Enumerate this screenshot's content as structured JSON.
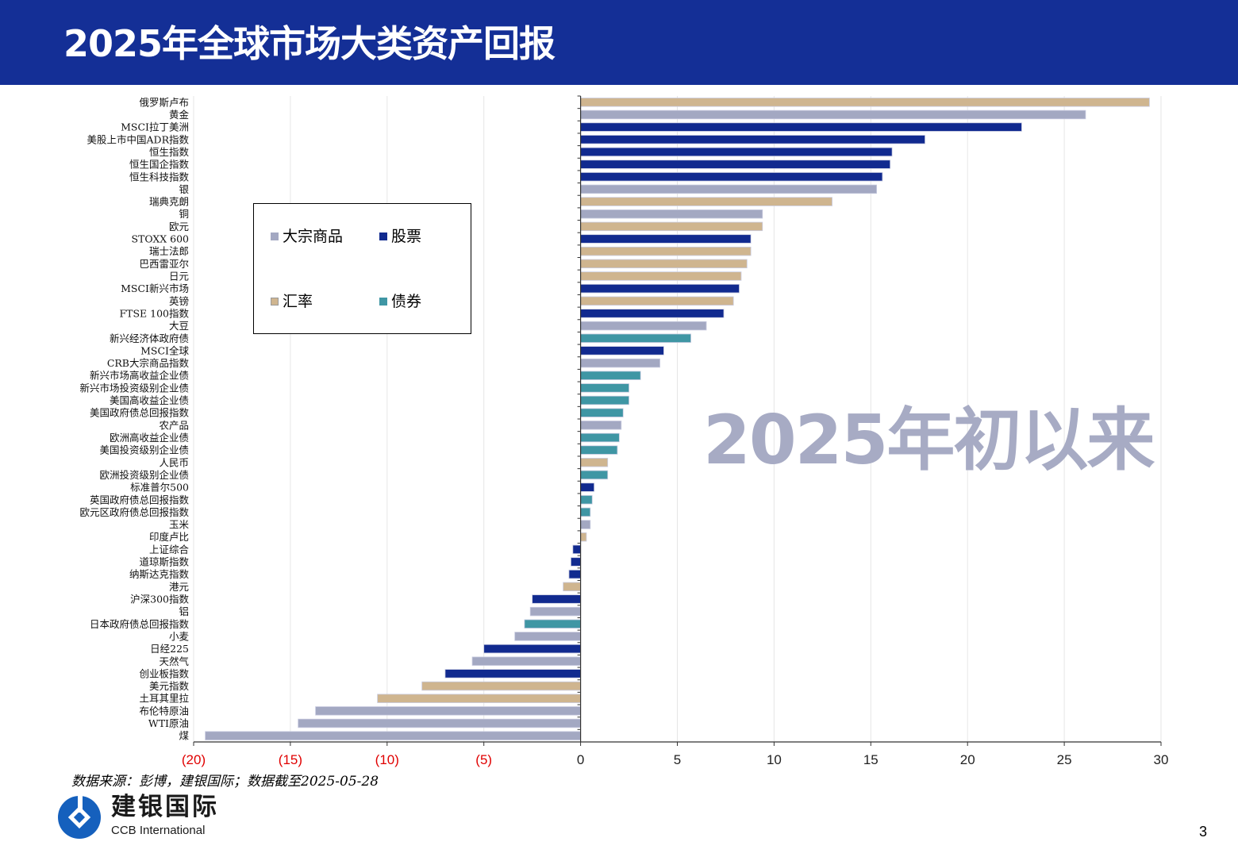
{
  "header": {
    "title": "2025年全球市场大类资产回报"
  },
  "watermark": "2025年初以来",
  "source": "数据来源：彭博，建银国际；数据截至2025-05-28",
  "logo": {
    "cn": "建银国际",
    "en": "CCB International"
  },
  "page_number": "3",
  "legend": {
    "commodity": "大宗商品",
    "equity": "股票",
    "fx": "汇率",
    "bond": "债券"
  },
  "colors": {
    "commodity": "#a3a8c2",
    "equity": "#112a8f",
    "fx": "#cfb58f",
    "bond": "#3f96a4",
    "header": "#142f96",
    "negative_tick": "#e00000"
  },
  "chart_data": {
    "type": "bar",
    "orientation": "horizontal",
    "title": "",
    "xlabel": "",
    "ylabel": "",
    "xlim": [
      -20,
      30
    ],
    "xticks": [
      -20,
      -15,
      -10,
      -5,
      0,
      5,
      10,
      15,
      20,
      25,
      30
    ],
    "xtick_labels": [
      "(20)",
      "(15)",
      "(10)",
      "(5)",
      "0",
      "5",
      "10",
      "15",
      "20",
      "25",
      "30"
    ],
    "grid": "vertical",
    "legend_position": "upper-left inside plot",
    "categories": [
      "俄罗斯卢布",
      "黄金",
      "MSCI拉丁美洲",
      "美股上市中国ADR指数",
      "恒生指数",
      "恒生国企指数",
      "恒生科技指数",
      "银",
      "瑞典克朗",
      "铜",
      "欧元",
      "STOXX 600",
      "瑞士法郎",
      "巴西雷亚尔",
      "日元",
      "MSCI新兴市场",
      "英镑",
      "FTSE 100指数",
      "大豆",
      "新兴经济体政府债",
      "MSCI全球",
      "CRB大宗商品指数",
      "新兴市场高收益企业债",
      "新兴市场投资级别企业债",
      "美国高收益企业债",
      "美国政府债总回报指数",
      "农产品",
      "欧洲高收益企业债",
      "美国投资级别企业债",
      "人民币",
      "欧洲投资级别企业债",
      "标准普尔500",
      "英国政府债总回报指数",
      "欧元区政府债总回报指数",
      "玉米",
      "印度卢比",
      "上证综合",
      "道琼斯指数",
      "纳斯达克指数",
      "港元",
      "沪深300指数",
      "铝",
      "日本政府债总回报指数",
      "小麦",
      "日经225",
      "天然气",
      "创业板指数",
      "美元指数",
      "土耳其里拉",
      "布伦特原油",
      "WTI原油",
      "煤"
    ],
    "values": [
      29.4,
      26.1,
      22.8,
      17.8,
      16.1,
      16.0,
      15.6,
      15.3,
      13.0,
      9.4,
      9.4,
      8.8,
      8.8,
      8.6,
      8.3,
      8.2,
      7.9,
      7.4,
      6.5,
      5.7,
      4.3,
      4.1,
      3.1,
      2.5,
      2.5,
      2.2,
      2.1,
      2.0,
      1.9,
      1.4,
      1.4,
      0.7,
      0.6,
      0.5,
      0.5,
      0.3,
      -0.4,
      -0.5,
      -0.6,
      -0.9,
      -2.5,
      -2.6,
      -2.9,
      -3.4,
      -5.0,
      -5.6,
      -7.0,
      -8.2,
      -10.5,
      -13.7,
      -14.6,
      -19.4
    ],
    "asset_class": [
      "fx",
      "commodity",
      "equity",
      "equity",
      "equity",
      "equity",
      "equity",
      "commodity",
      "fx",
      "commodity",
      "fx",
      "equity",
      "fx",
      "fx",
      "fx",
      "equity",
      "fx",
      "equity",
      "commodity",
      "bond",
      "equity",
      "commodity",
      "bond",
      "bond",
      "bond",
      "bond",
      "commodity",
      "bond",
      "bond",
      "fx",
      "bond",
      "equity",
      "bond",
      "bond",
      "commodity",
      "fx",
      "equity",
      "equity",
      "equity",
      "fx",
      "equity",
      "commodity",
      "bond",
      "commodity",
      "equity",
      "commodity",
      "equity",
      "fx",
      "fx",
      "commodity",
      "commodity",
      "commodity"
    ]
  }
}
